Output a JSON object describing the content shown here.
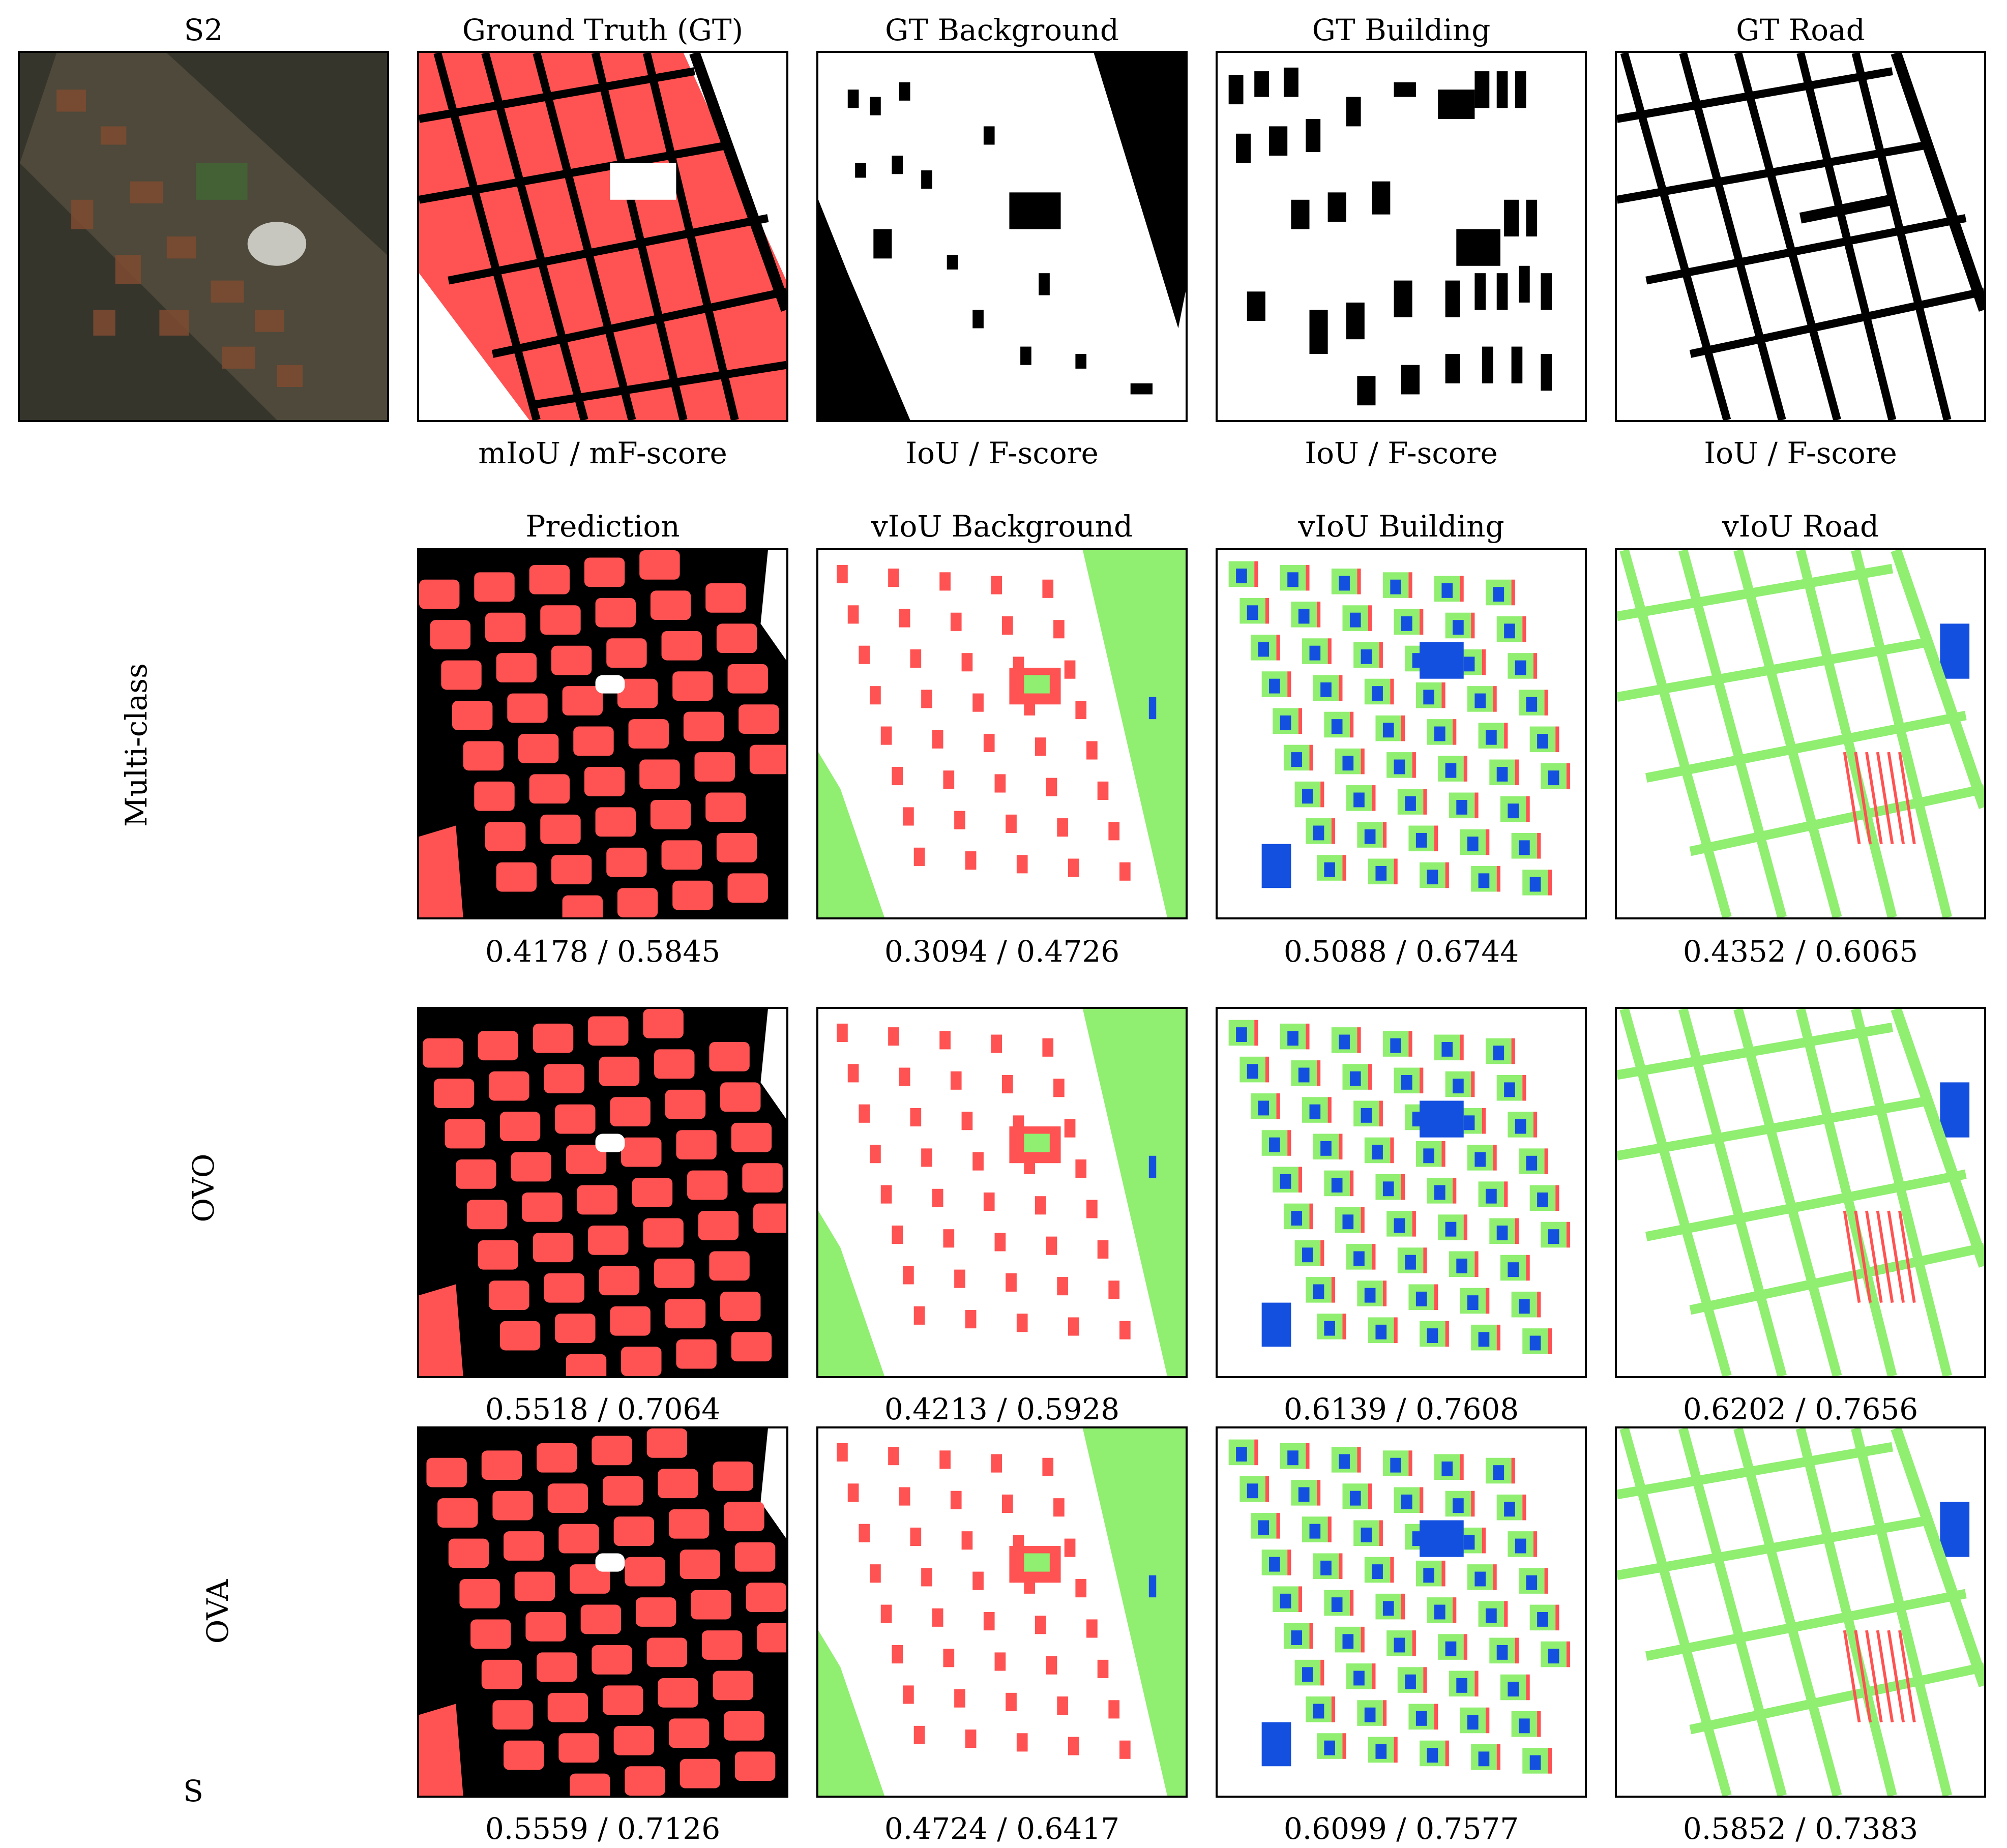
{
  "top_titles": {
    "s2": "S2",
    "gt": "Ground Truth (GT)",
    "gt_background": "GT Background",
    "gt_building": "GT Building",
    "gt_road": "GT Road"
  },
  "metric_headers": {
    "overall": "mIoU / mF-score",
    "background": "IoU / F-score",
    "building": "IoU / F-score",
    "road": "IoU / F-score"
  },
  "pred_titles": {
    "prediction": "Prediction",
    "viou_background": "vIoU Background",
    "viou_building": "vIoU Building",
    "viou_road": "vIoU Road"
  },
  "rows": [
    {
      "label": "Multi-class",
      "scores": [
        "0.4178 / 0.5845",
        "0.3094 / 0.4726",
        "0.5088 / 0.6744",
        "0.4352 / 0.6065"
      ]
    },
    {
      "label": "OVO",
      "scores": [
        "0.5518 / 0.7064",
        "0.4213 / 0.5928",
        "0.6139 / 0.7608",
        "0.6202 / 0.7656"
      ]
    },
    {
      "label": "OVA",
      "scores": [
        "0.5559 / 0.7126",
        "0.4724 / 0.6417",
        "0.6099 / 0.7577",
        "0.5852 / 0.7383"
      ]
    }
  ],
  "corner_letter": "S",
  "colors": {
    "building": "#ff5252",
    "background": "#ffffff",
    "road": "#000000",
    "true_positive": "#90ee70",
    "false_negative": "#ff5252",
    "false_positive": "#1450e0"
  }
}
